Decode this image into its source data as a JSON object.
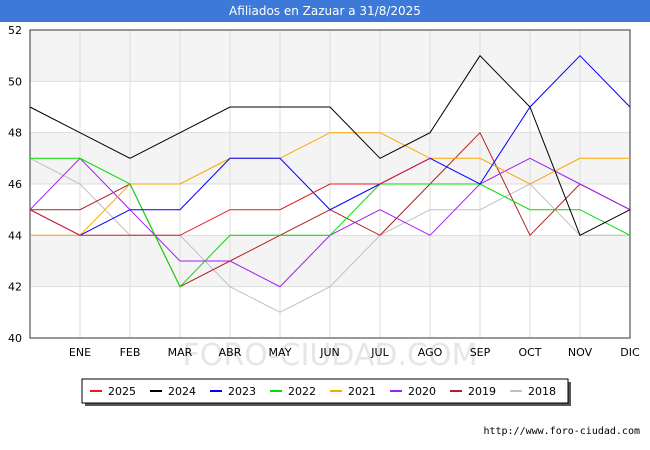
{
  "title": "Afiliados en Zazuar a 31/8/2025",
  "source": "http://www.foro-ciudad.com",
  "watermark": "FORO-CIUDAD.COM",
  "chart_data": {
    "type": "line",
    "title": "Afiliados en Zazuar a 31/8/2025",
    "xlabel": "",
    "ylabel": "",
    "categories": [
      "",
      "ENE",
      "FEB",
      "MAR",
      "ABR",
      "MAY",
      "JUN",
      "JUL",
      "AGO",
      "SEP",
      "OCT",
      "NOV",
      "DIC"
    ],
    "ylim": [
      40,
      52
    ],
    "yticks": [
      40,
      42,
      44,
      46,
      48,
      50,
      52
    ],
    "grid": true,
    "legend_position": "bottom",
    "series": [
      {
        "name": "2025",
        "color": "#e41a1c",
        "values": [
          45,
          44,
          44,
          44,
          45,
          45,
          46,
          46,
          47,
          null,
          null,
          null,
          null
        ]
      },
      {
        "name": "2024",
        "color": "#000000",
        "values": [
          49,
          48,
          47,
          48,
          49,
          49,
          49,
          47,
          48,
          51,
          49,
          44,
          45
        ]
      },
      {
        "name": "2023",
        "color": "#0000ff",
        "values": [
          45,
          44,
          45,
          45,
          47,
          47,
          45,
          46,
          47,
          46,
          49,
          51,
          49
        ]
      },
      {
        "name": "2022",
        "color": "#00dd00",
        "values": [
          47,
          47,
          46,
          42,
          44,
          44,
          44,
          46,
          46,
          46,
          45,
          45,
          44
        ]
      },
      {
        "name": "2021",
        "color": "#ffa500",
        "values": [
          44,
          44,
          46,
          46,
          47,
          47,
          48,
          48,
          47,
          47,
          46,
          47,
          47
        ]
      },
      {
        "name": "2020",
        "color": "#a020f0",
        "values": [
          45,
          47,
          45,
          43,
          43,
          42,
          44,
          45,
          44,
          46,
          47,
          46,
          45
        ]
      },
      {
        "name": "2019",
        "color": "#b22222",
        "values": [
          45,
          45,
          46,
          42,
          43,
          44,
          45,
          44,
          46,
          48,
          44,
          46,
          45
        ]
      },
      {
        "name": "2018",
        "color": "#c0c0c0",
        "values": [
          47,
          46,
          44,
          44,
          42,
          41,
          42,
          44,
          45,
          45,
          46,
          44,
          44
        ]
      }
    ]
  }
}
